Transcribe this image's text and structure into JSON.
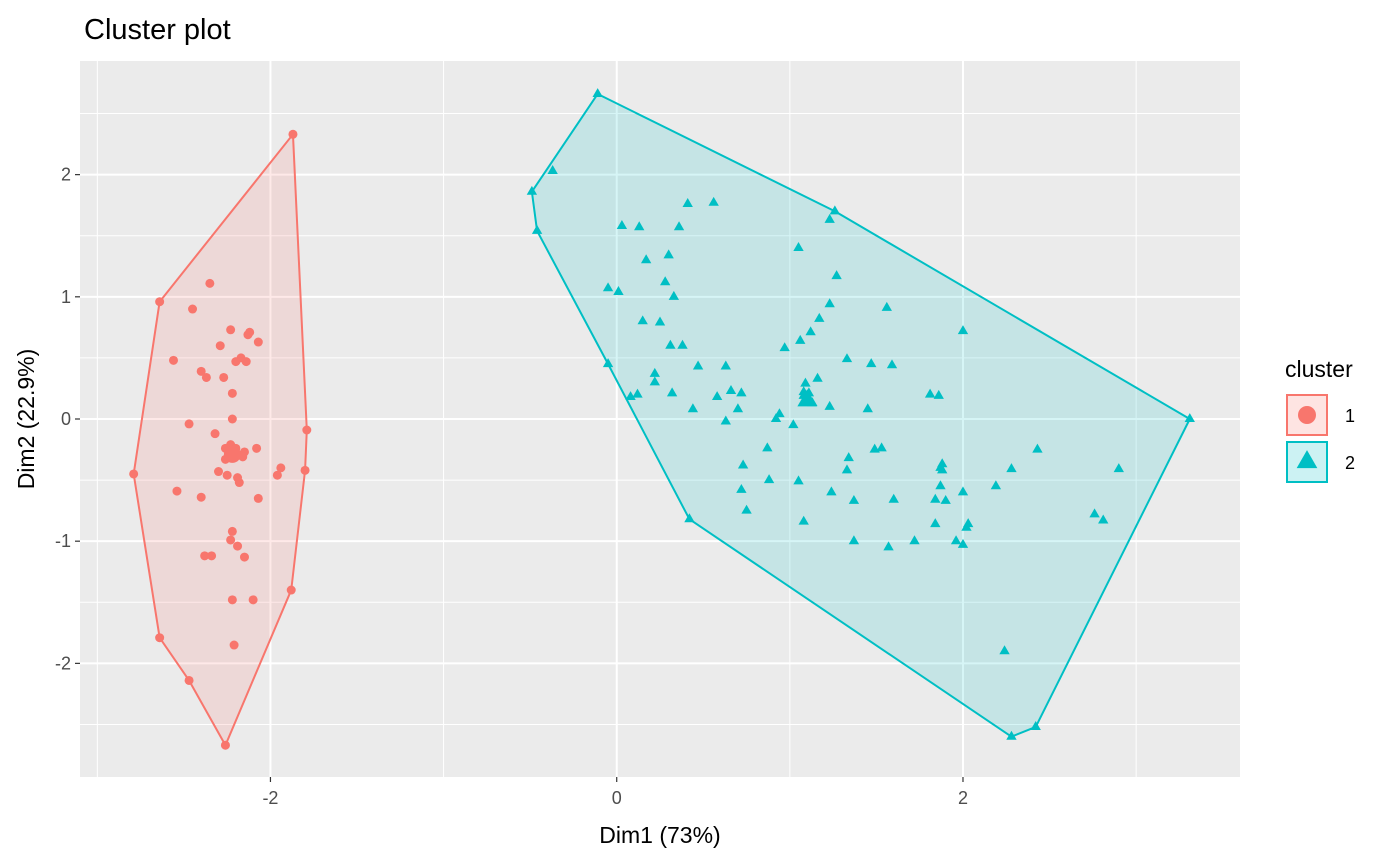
{
  "chart_data": {
    "type": "scatter",
    "title": "Cluster plot",
    "xlabel": "Dim1 (73%)",
    "ylabel": "Dim2 (22.9%)",
    "xlim": [
      -3.1,
      3.6
    ],
    "ylim": [
      -2.93,
      2.93
    ],
    "x_ticks": [
      -2,
      0,
      2
    ],
    "y_ticks": [
      -2,
      -1,
      0,
      1,
      2
    ],
    "x_tick_labels": [
      "-2",
      "0",
      "2"
    ],
    "y_tick_labels": [
      "-2",
      "-1",
      "0",
      "1",
      "2"
    ],
    "grid": true,
    "legend": {
      "title": "cluster",
      "position": "right"
    },
    "series": [
      {
        "name": "1",
        "color": "#F8766D",
        "shape": "circle",
        "centroid": [
          -2.22,
          -0.29
        ],
        "hull": [
          [
            -2.26,
            -2.67
          ],
          [
            -2.47,
            -2.14
          ],
          [
            -2.64,
            -1.79
          ],
          [
            -2.79,
            -0.45
          ],
          [
            -2.64,
            0.96
          ],
          [
            -1.87,
            2.33
          ],
          [
            -1.79,
            -0.09
          ],
          [
            -1.8,
            -0.42
          ],
          [
            -1.88,
            -1.4
          ]
        ],
        "points": [
          [
            -2.26,
            -2.67
          ],
          [
            -2.47,
            -2.14
          ],
          [
            -2.64,
            -1.79
          ],
          [
            -2.79,
            -0.45
          ],
          [
            -2.64,
            0.96
          ],
          [
            -1.87,
            2.33
          ],
          [
            -1.79,
            -0.09
          ],
          [
            -1.8,
            -0.42
          ],
          [
            -1.88,
            -1.4
          ],
          [
            -2.35,
            1.11
          ],
          [
            -2.45,
            0.9
          ],
          [
            -2.23,
            0.73
          ],
          [
            -2.13,
            0.69
          ],
          [
            -2.12,
            0.71
          ],
          [
            -2.29,
            0.6
          ],
          [
            -2.07,
            0.63
          ],
          [
            -2.56,
            0.48
          ],
          [
            -2.2,
            0.47
          ],
          [
            -2.17,
            0.5
          ],
          [
            -2.14,
            0.47
          ],
          [
            -2.4,
            0.39
          ],
          [
            -2.37,
            0.34
          ],
          [
            -2.27,
            0.34
          ],
          [
            -2.22,
            0.21
          ],
          [
            -2.22,
            0.0
          ],
          [
            -2.47,
            -0.04
          ],
          [
            -2.32,
            -0.12
          ],
          [
            -2.23,
            -0.21
          ],
          [
            -2.26,
            -0.24
          ],
          [
            -2.15,
            -0.27
          ],
          [
            -2.19,
            -0.29
          ],
          [
            -2.16,
            -0.31
          ],
          [
            -2.2,
            -0.24
          ],
          [
            -2.08,
            -0.24
          ],
          [
            -2.26,
            -0.33
          ],
          [
            -2.3,
            -0.43
          ],
          [
            -2.25,
            -0.46
          ],
          [
            -2.19,
            -0.48
          ],
          [
            -2.18,
            -0.52
          ],
          [
            -1.96,
            -0.46
          ],
          [
            -1.94,
            -0.4
          ],
          [
            -2.54,
            -0.59
          ],
          [
            -2.4,
            -0.64
          ],
          [
            -2.07,
            -0.65
          ],
          [
            -2.22,
            -0.92
          ],
          [
            -2.23,
            -0.99
          ],
          [
            -2.19,
            -1.04
          ],
          [
            -2.38,
            -1.12
          ],
          [
            -2.34,
            -1.12
          ],
          [
            -2.15,
            -1.13
          ],
          [
            -2.22,
            -1.48
          ],
          [
            -2.1,
            -1.48
          ],
          [
            -2.21,
            -1.85
          ]
        ]
      },
      {
        "name": "2",
        "color": "#00BFC4",
        "shape": "triangle",
        "centroid": [
          1.1,
          0.15
        ],
        "hull": [
          [
            -0.11,
            2.66
          ],
          [
            1.26,
            1.7
          ],
          [
            3.31,
            0.0
          ],
          [
            2.42,
            -2.52
          ],
          [
            2.28,
            -2.6
          ],
          [
            0.42,
            -0.82
          ],
          [
            -0.05,
            0.45
          ],
          [
            -0.46,
            1.54
          ],
          [
            -0.49,
            1.86
          ]
        ],
        "points": [
          [
            -0.11,
            2.66
          ],
          [
            1.26,
            1.7
          ],
          [
            3.31,
            0.0
          ],
          [
            2.42,
            -2.52
          ],
          [
            2.28,
            -2.6
          ],
          [
            0.42,
            -0.82
          ],
          [
            -0.05,
            0.45
          ],
          [
            -0.46,
            1.54
          ],
          [
            -0.49,
            1.86
          ],
          [
            -0.37,
            2.03
          ],
          [
            0.41,
            1.76
          ],
          [
            0.56,
            1.77
          ],
          [
            1.23,
            1.63
          ],
          [
            0.03,
            1.58
          ],
          [
            0.13,
            1.57
          ],
          [
            0.36,
            1.57
          ],
          [
            1.05,
            1.4
          ],
          [
            0.3,
            1.34
          ],
          [
            0.17,
            1.3
          ],
          [
            1.27,
            1.17
          ],
          [
            0.28,
            1.12
          ],
          [
            -0.05,
            1.07
          ],
          [
            0.01,
            1.04
          ],
          [
            0.33,
            1.0
          ],
          [
            1.23,
            0.94
          ],
          [
            1.56,
            0.91
          ],
          [
            0.15,
            0.8
          ],
          [
            1.17,
            0.82
          ],
          [
            0.25,
            0.79
          ],
          [
            2.0,
            0.72
          ],
          [
            1.12,
            0.71
          ],
          [
            0.31,
            0.6
          ],
          [
            1.06,
            0.64
          ],
          [
            0.38,
            0.6
          ],
          [
            0.97,
            0.58
          ],
          [
            1.33,
            0.49
          ],
          [
            1.47,
            0.45
          ],
          [
            0.47,
            0.43
          ],
          [
            0.63,
            0.43
          ],
          [
            1.59,
            0.44
          ],
          [
            0.22,
            0.37
          ],
          [
            1.16,
            0.33
          ],
          [
            0.22,
            0.3
          ],
          [
            1.09,
            0.29
          ],
          [
            0.32,
            0.21
          ],
          [
            0.66,
            0.23
          ],
          [
            0.72,
            0.21
          ],
          [
            1.81,
            0.2
          ],
          [
            1.86,
            0.19
          ],
          [
            1.08,
            0.19
          ],
          [
            0.12,
            0.2
          ],
          [
            0.58,
            0.18
          ],
          [
            0.08,
            0.18
          ],
          [
            1.13,
            0.13
          ],
          [
            1.11,
            0.21
          ],
          [
            1.08,
            0.22
          ],
          [
            0.44,
            0.08
          ],
          [
            0.7,
            0.08
          ],
          [
            1.45,
            0.08
          ],
          [
            1.23,
            0.1
          ],
          [
            0.94,
            0.04
          ],
          [
            0.92,
            0.0
          ],
          [
            1.02,
            -0.05
          ],
          [
            0.63,
            -0.02
          ],
          [
            0.87,
            -0.24
          ],
          [
            1.53,
            -0.24
          ],
          [
            1.49,
            -0.25
          ],
          [
            1.34,
            -0.32
          ],
          [
            1.33,
            -0.42
          ],
          [
            1.88,
            -0.37
          ],
          [
            1.87,
            -0.4
          ],
          [
            1.88,
            -0.42
          ],
          [
            2.28,
            -0.41
          ],
          [
            2.9,
            -0.41
          ],
          [
            2.43,
            -0.25
          ],
          [
            0.73,
            -0.38
          ],
          [
            0.88,
            -0.5
          ],
          [
            1.05,
            -0.51
          ],
          [
            1.87,
            -0.55
          ],
          [
            2.19,
            -0.55
          ],
          [
            0.72,
            -0.58
          ],
          [
            1.24,
            -0.6
          ],
          [
            2.0,
            -0.6
          ],
          [
            1.6,
            -0.66
          ],
          [
            1.37,
            -0.67
          ],
          [
            1.9,
            -0.67
          ],
          [
            1.84,
            -0.66
          ],
          [
            0.75,
            -0.75
          ],
          [
            2.76,
            -0.78
          ],
          [
            2.81,
            -0.83
          ],
          [
            1.08,
            -0.84
          ],
          [
            1.84,
            -0.86
          ],
          [
            2.03,
            -0.86
          ],
          [
            2.02,
            -0.89
          ],
          [
            1.37,
            -1.0
          ],
          [
            1.96,
            -1.0
          ],
          [
            1.72,
            -1.0
          ],
          [
            1.57,
            -1.05
          ],
          [
            2.0,
            -1.03
          ],
          [
            2.24,
            -1.9
          ]
        ]
      }
    ]
  }
}
